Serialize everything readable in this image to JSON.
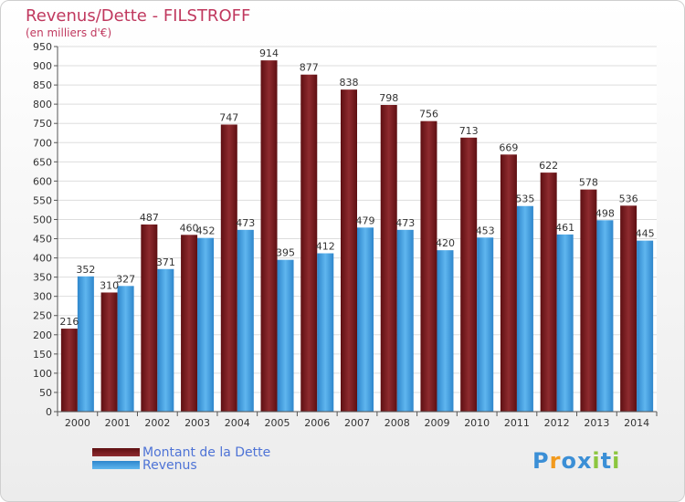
{
  "header": {
    "title": "Revenus/Dette - FILSTROFF",
    "subtitle": "(en milliers d'€)"
  },
  "legend": {
    "debt_label": "Montant de la Dette",
    "revenue_label": "Revenus"
  },
  "logo": {
    "text": "Proxiti",
    "letters": [
      {
        "ch": "P",
        "color": "#3b8fd6"
      },
      {
        "ch": "r",
        "color": "#f29a1d"
      },
      {
        "ch": "o",
        "color": "#3b8fd6"
      },
      {
        "ch": "x",
        "color": "#3b8fd6"
      },
      {
        "ch": "i",
        "color": "#8cc63f"
      },
      {
        "ch": "t",
        "color": "#3b8fd6"
      },
      {
        "ch": "i",
        "color": "#8cc63f"
      }
    ]
  },
  "chart_data": {
    "type": "bar",
    "title": "Revenus/Dette - FILSTROFF",
    "subtitle": "(en milliers d'€)",
    "categories": [
      "2000",
      "2001",
      "2002",
      "2003",
      "2004",
      "2005",
      "2006",
      "2007",
      "2008",
      "2009",
      "2010",
      "2011",
      "2012",
      "2013",
      "2014"
    ],
    "series": [
      {
        "name": "Montant de la Dette",
        "color": "#7a1a1e",
        "values": [
          216,
          310,
          487,
          460,
          747,
          914,
          877,
          838,
          798,
          756,
          713,
          669,
          622,
          578,
          536
        ]
      },
      {
        "name": "Revenus",
        "color": "#4aa5e6",
        "values": [
          352,
          327,
          371,
          452,
          473,
          395,
          412,
          479,
          473,
          420,
          453,
          535,
          461,
          498,
          445
        ]
      }
    ],
    "ylim": [
      0,
      950
    ],
    "ytick_step": 50,
    "grid": true,
    "legend_position": "bottom-left"
  }
}
